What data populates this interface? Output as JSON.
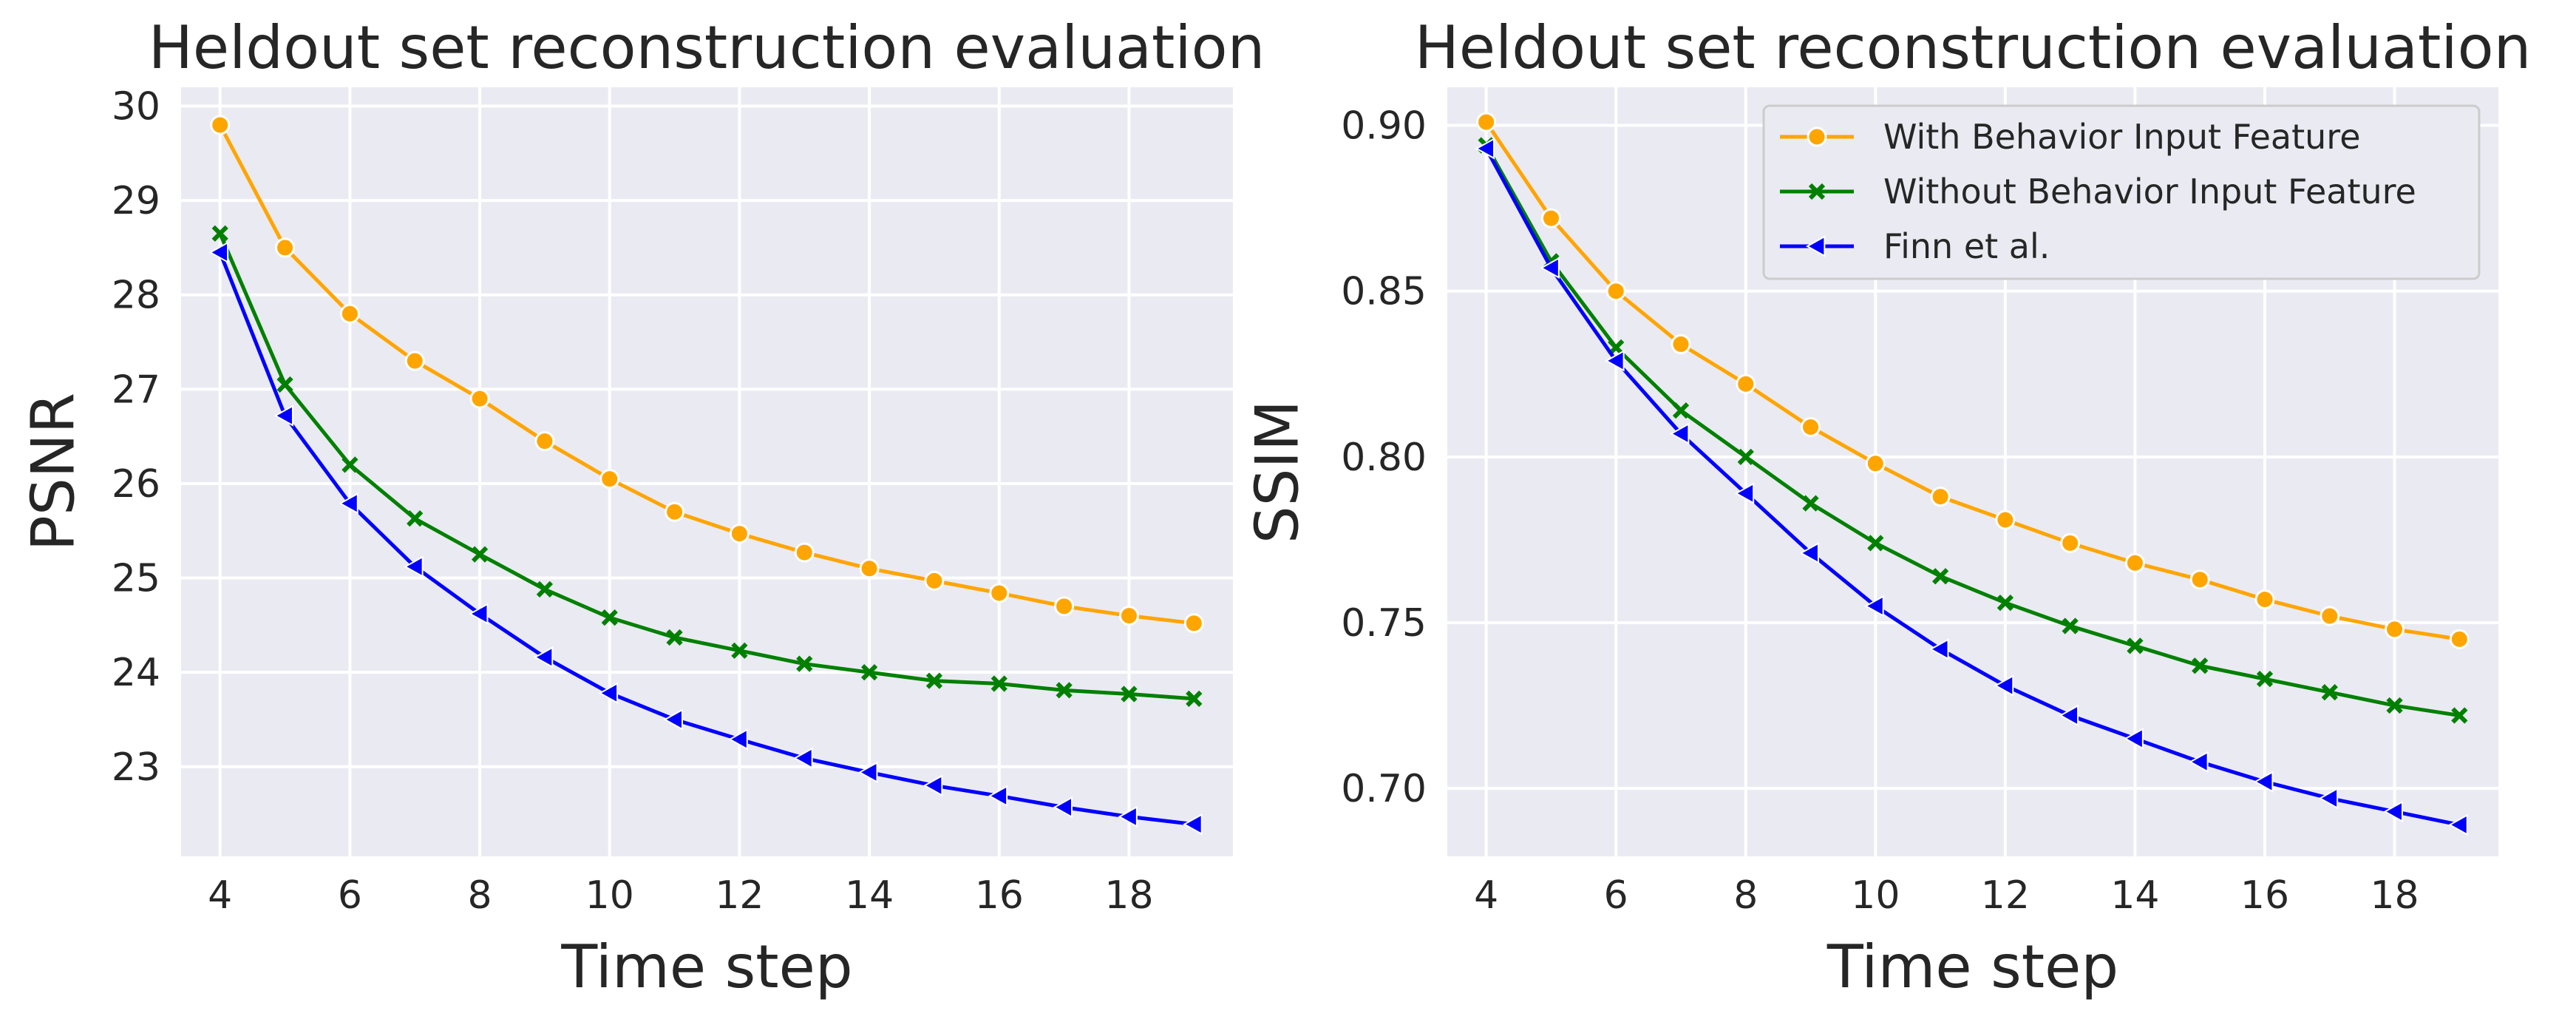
{
  "chart_data": [
    {
      "type": "line",
      "title": "Heldout set reconstruction evaluation",
      "xlabel": "Time step",
      "ylabel": "PSNR",
      "x": [
        4,
        5,
        6,
        7,
        8,
        9,
        10,
        11,
        12,
        13,
        14,
        15,
        16,
        17,
        18,
        19
      ],
      "xticks": [
        4,
        6,
        8,
        10,
        12,
        14,
        16,
        18
      ],
      "xlim": [
        3.4,
        19.6
      ],
      "yticks": [
        23,
        24,
        25,
        26,
        27,
        28,
        29,
        30
      ],
      "ylim": [
        22.05,
        30.2
      ],
      "grid": true,
      "series": [
        {
          "name": "With Behavior Input Feature",
          "color": "#FFA500",
          "marker": "circle",
          "values": [
            29.8,
            28.5,
            27.8,
            27.3,
            26.9,
            26.45,
            26.05,
            25.7,
            25.47,
            25.27,
            25.1,
            24.97,
            24.84,
            24.7,
            24.6,
            24.52
          ]
        },
        {
          "name": "Without Behavior Input Feature",
          "color": "#008000",
          "marker": "x",
          "values": [
            28.65,
            27.05,
            26.2,
            25.63,
            25.25,
            24.88,
            24.58,
            24.37,
            24.23,
            24.09,
            24.0,
            23.91,
            23.88,
            23.81,
            23.77,
            23.72
          ]
        },
        {
          "name": "Finn et al.",
          "color": "#0000FF",
          "marker": "triangle-left",
          "values": [
            28.45,
            26.72,
            25.79,
            25.12,
            24.62,
            24.16,
            23.78,
            23.5,
            23.29,
            23.09,
            22.94,
            22.8,
            22.69,
            22.57,
            22.47,
            22.39
          ]
        }
      ]
    },
    {
      "type": "line",
      "title": "Heldout set reconstruction evaluation",
      "xlabel": "Time step",
      "ylabel": "SSIM",
      "x": [
        4,
        5,
        6,
        7,
        8,
        9,
        10,
        11,
        12,
        13,
        14,
        15,
        16,
        17,
        18,
        19
      ],
      "xticks": [
        4,
        6,
        8,
        10,
        12,
        14,
        16,
        18
      ],
      "xlim": [
        3.4,
        19.6
      ],
      "yticks": [
        0.7,
        0.75,
        0.8,
        0.85,
        0.9
      ],
      "ytick_labels": [
        "0.70",
        "0.75",
        "0.80",
        "0.85",
        "0.90"
      ],
      "ylim": [
        0.6795,
        0.9115
      ],
      "grid": true,
      "legend": "top-right",
      "series": [
        {
          "name": "With Behavior Input Feature",
          "color": "#FFA500",
          "marker": "circle",
          "values": [
            0.901,
            0.872,
            0.85,
            0.834,
            0.822,
            0.809,
            0.798,
            0.788,
            0.781,
            0.774,
            0.768,
            0.763,
            0.757,
            0.752,
            0.748,
            0.745
          ]
        },
        {
          "name": "Without Behavior Input Feature",
          "color": "#008000",
          "marker": "x",
          "values": [
            0.894,
            0.859,
            0.833,
            0.814,
            0.8,
            0.786,
            0.774,
            0.764,
            0.756,
            0.749,
            0.743,
            0.737,
            0.733,
            0.729,
            0.725,
            0.722
          ]
        },
        {
          "name": "Finn et al.",
          "color": "#0000FF",
          "marker": "triangle-left",
          "values": [
            0.893,
            0.857,
            0.829,
            0.807,
            0.789,
            0.771,
            0.755,
            0.742,
            0.731,
            0.722,
            0.715,
            0.708,
            0.702,
            0.697,
            0.693,
            0.689
          ]
        }
      ]
    }
  ]
}
